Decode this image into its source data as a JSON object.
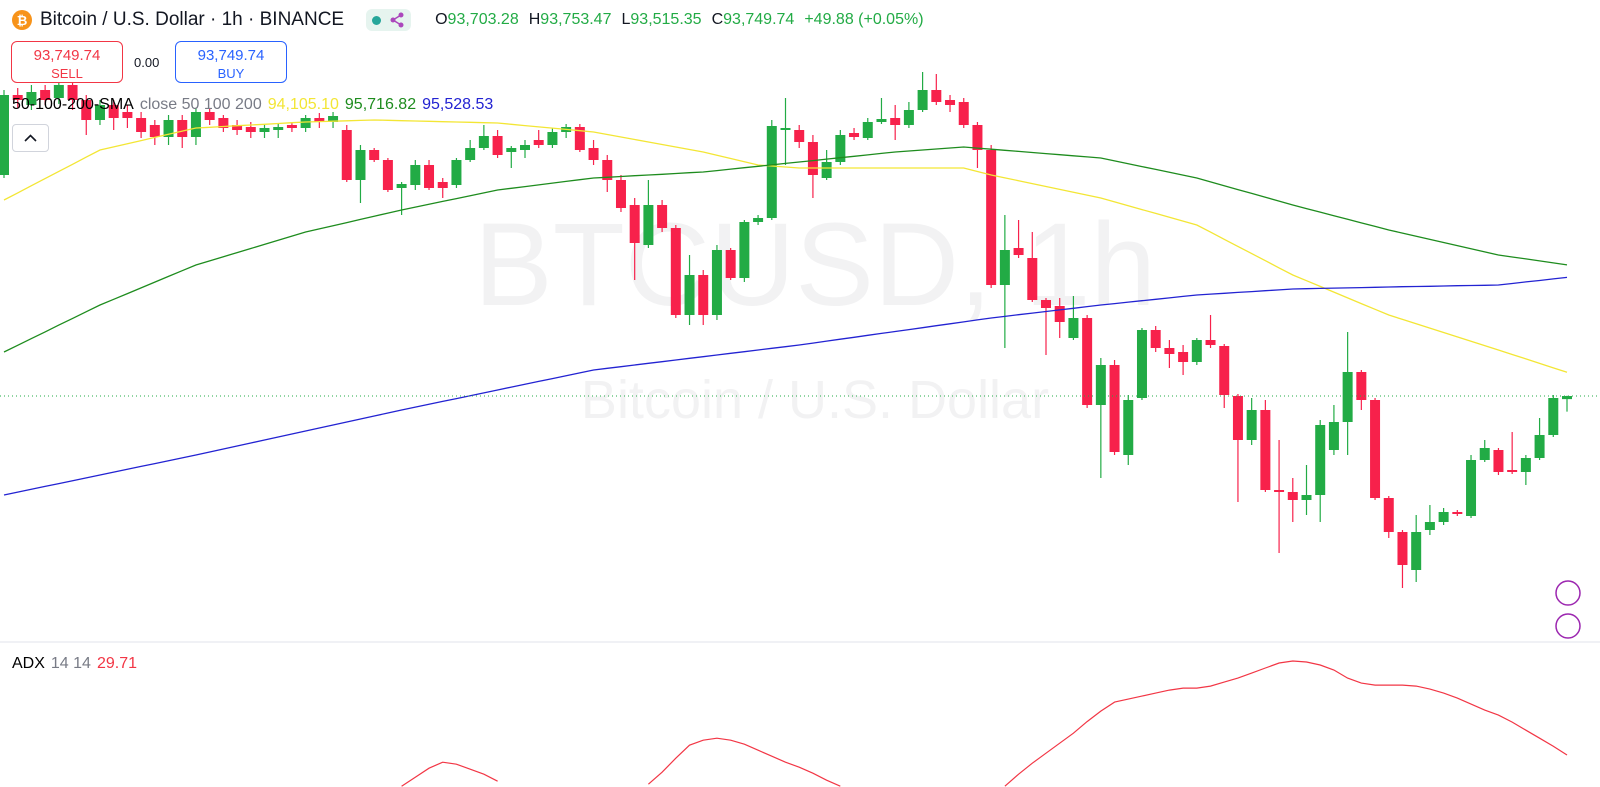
{
  "chart_data": [
    {
      "type": "candlestick",
      "title": "Bitcoin / U.S. Dollar · 1h · BINANCE",
      "quote": [
        {
          "key": "O",
          "label": "93,703.28"
        },
        {
          "key": "H",
          "label": "93,753.47"
        },
        {
          "key": "L",
          "label": "93,515.35"
        },
        {
          "key": "C",
          "label": "93,749.74"
        }
      ],
      "change": "+49.88 (+0.05%)",
      "sell": {
        "price": "93,749.74",
        "label": "SELL"
      },
      "spread": "0.00",
      "buy": {
        "price": "93,749.74",
        "label": "BUY"
      },
      "watermark": [
        "BTCUSD, 1h",
        "Bitcoin / U.S. Dollar"
      ],
      "indicator": {
        "title": "50-100-200-SMA",
        "params": "close 50 100 200"
      },
      "up_color": "#22ab45",
      "down_color": "#f7214b",
      "ylim": [
        90090,
        99690
      ],
      "categories": [
        null,
        null,
        null,
        null,
        null,
        null,
        null,
        null,
        null,
        null,
        null,
        null,
        null,
        null,
        null,
        null,
        null,
        null,
        null,
        null,
        null,
        null,
        null,
        null,
        null,
        null,
        null,
        null,
        null,
        null,
        null,
        null,
        null,
        null,
        null,
        null,
        null,
        null,
        null,
        null,
        null,
        null,
        null,
        null,
        null,
        null,
        null,
        null,
        null,
        null,
        null,
        null,
        null,
        null,
        null,
        null,
        null,
        null,
        null,
        null,
        null,
        null,
        null,
        null,
        null,
        null,
        null,
        null,
        null,
        null,
        null,
        null,
        null,
        null,
        null,
        null,
        null,
        null,
        null,
        null,
        null,
        null,
        null,
        null,
        null,
        null,
        null,
        null,
        null,
        null,
        null,
        null,
        null,
        null,
        null,
        null,
        null,
        null,
        null,
        null,
        null,
        null,
        null,
        null,
        null,
        null,
        null,
        null,
        null,
        null,
        null,
        null,
        null,
        null,
        null
      ],
      "open": [
        97065,
        98265,
        98115,
        98340,
        98220,
        98415,
        98190,
        97890,
        98115,
        98010,
        97920,
        97815,
        97635,
        97890,
        97635,
        98010,
        97920,
        97815,
        97785,
        97710,
        97740,
        97815,
        97770,
        97920,
        97860,
        97740,
        96990,
        97440,
        97290,
        96870,
        96915,
        97215,
        96960,
        96915,
        97290,
        97470,
        97650,
        97410,
        97440,
        97590,
        97515,
        97710,
        97785,
        97470,
        97290,
        96990,
        96615,
        96015,
        96615,
        96270,
        94965,
        95565,
        94965,
        95940,
        95520,
        96360,
        96420,
        97740,
        97740,
        97560,
        97020,
        97260,
        97695,
        97620,
        97860,
        97920,
        97815,
        98040,
        98340,
        98190,
        98160,
        97815,
        97440,
        95415,
        95970,
        95820,
        95190,
        95100,
        94620,
        94920,
        93615,
        94215,
        92865,
        93720,
        94740,
        94470,
        94410,
        94260,
        94590,
        94500,
        93750,
        93090,
        93540,
        92340,
        92310,
        92190,
        92265,
        92940,
        93360,
        94110,
        93690,
        92220,
        91710,
        91140,
        91740,
        91860,
        92010,
        91950,
        92790,
        92940,
        92640,
        92610,
        92820,
        93165,
        93703.28
      ],
      "high": [
        98340,
        98370,
        98415,
        98415,
        98490,
        98490,
        98265,
        98190,
        98190,
        98115,
        98010,
        97890,
        97965,
        97965,
        98070,
        98070,
        97965,
        97890,
        97860,
        97815,
        97830,
        97860,
        97965,
        97995,
        98010,
        97815,
        97515,
        97470,
        97320,
        96960,
        97290,
        97290,
        97020,
        97320,
        97590,
        97815,
        97740,
        97500,
        97590,
        97740,
        97770,
        97830,
        97830,
        97590,
        97365,
        97065,
        96720,
        96990,
        96690,
        96315,
        95865,
        95640,
        96015,
        95970,
        96390,
        96465,
        97890,
        98220,
        97815,
        97665,
        97440,
        97740,
        97770,
        97920,
        98220,
        98115,
        98160,
        98610,
        98580,
        98265,
        98220,
        97860,
        97515,
        96465,
        96390,
        96210,
        95220,
        95220,
        95250,
        94965,
        94320,
        94290,
        93765,
        94770,
        94800,
        94590,
        94515,
        94620,
        94965,
        94530,
        93780,
        93720,
        93690,
        93090,
        92520,
        92715,
        93390,
        93615,
        94710,
        94140,
        93720,
        92250,
        91740,
        91965,
        92115,
        92070,
        92040,
        92865,
        93090,
        92970,
        93210,
        92865,
        93420,
        93765,
        93753.47
      ],
      "low": [
        97020,
        98070,
        98040,
        98115,
        98130,
        98040,
        97665,
        97815,
        97740,
        97770,
        97620,
        97515,
        97515,
        97470,
        97515,
        97815,
        97710,
        97665,
        97620,
        97620,
        97620,
        97710,
        97710,
        97770,
        97770,
        96960,
        96645,
        97260,
        96810,
        96465,
        96840,
        96840,
        96720,
        96870,
        97260,
        97440,
        97320,
        97170,
        97320,
        97470,
        97470,
        97620,
        97410,
        97215,
        96810,
        96510,
        95490,
        95970,
        96210,
        94920,
        94815,
        94815,
        94890,
        95490,
        95460,
        96315,
        96390,
        97215,
        97470,
        96720,
        96990,
        97215,
        97590,
        97590,
        97830,
        97590,
        97770,
        98010,
        98115,
        98010,
        97770,
        97170,
        95370,
        94470,
        95820,
        95160,
        94365,
        94620,
        94590,
        93570,
        92520,
        92865,
        92715,
        93690,
        94410,
        94170,
        94065,
        94215,
        94470,
        93570,
        92160,
        93015,
        92310,
        91395,
        91860,
        91965,
        91860,
        92865,
        92865,
        93540,
        92190,
        91620,
        90870,
        90960,
        91665,
        91815,
        91950,
        91920,
        92760,
        92565,
        92580,
        92415,
        92790,
        93135,
        93515.35
      ],
      "close": [
        98265,
        98190,
        98310,
        98190,
        98415,
        98190,
        97890,
        98115,
        97920,
        97920,
        97710,
        97635,
        97890,
        97635,
        98010,
        97890,
        97770,
        97740,
        97710,
        97770,
        97785,
        97770,
        97920,
        97860,
        97950,
        96990,
        97440,
        97290,
        96840,
        96930,
        97215,
        96870,
        96870,
        97290,
        97470,
        97650,
        97365,
        97470,
        97515,
        97515,
        97710,
        97785,
        97440,
        97290,
        96990,
        96570,
        96045,
        96615,
        96270,
        94965,
        95565,
        94965,
        95940,
        95520,
        96360,
        96420,
        97800,
        97770,
        97560,
        97065,
        97260,
        97665,
        97635,
        97860,
        97905,
        97815,
        98040,
        98340,
        98160,
        98115,
        97815,
        97440,
        95415,
        95940,
        95865,
        95190,
        95070,
        94860,
        94920,
        93615,
        94215,
        92910,
        93690,
        94740,
        94470,
        94380,
        94260,
        94590,
        94515,
        93765,
        93090,
        93540,
        92340,
        92310,
        92190,
        92265,
        93315,
        93360,
        94110,
        93690,
        92220,
        91710,
        91215,
        91710,
        91860,
        92010,
        91980,
        92790,
        92970,
        92610,
        92610,
        92820,
        93165,
        93720,
        93749.74
      ],
      "series": [
        {
          "color": "#f3e635",
          "value_label": "94,105.10",
          "values": [
            96690,
            96797,
            96904,
            97011,
            97119,
            97226,
            97333,
            97440,
            97487,
            97534,
            97581,
            97629,
            97676,
            97723,
            97770,
            97781,
            97793,
            97804,
            97815,
            97826,
            97838,
            97849,
            97860,
            97866,
            97872,
            97878,
            97884,
            97890,
            97885,
            97880,
            97875,
            97870,
            97865,
            97860,
            97855,
            97850,
            97845,
            97826,
            97806,
            97787,
            97768,
            97749,
            97729,
            97710,
            97673,
            97635,
            97598,
            97560,
            97523,
            97485,
            97448,
            97410,
            97361,
            97313,
            97264,
            97215,
            97200,
            97185,
            97170,
            97170,
            97170,
            97170,
            97170,
            97170,
            97170,
            97170,
            97170,
            97170,
            97170,
            97170,
            97170,
            97118,
            97065,
            97022,
            96979,
            96936,
            96893,
            96849,
            96806,
            96763,
            96720,
            96662,
            96604,
            96546,
            96489,
            96431,
            96373,
            96315,
            96208,
            96101,
            95994,
            95886,
            95779,
            95672,
            95565,
            95479,
            95394,
            95308,
            95222,
            95136,
            95051,
            94965,
            94899,
            94834,
            94768,
            94703,
            94637,
            94571,
            94506,
            94440,
            94373,
            94306,
            94239,
            94172,
            94105.1
          ]
        },
        {
          "color": "#1e8c1e",
          "value_label": "95,716.82",
          "values": [
            94410,
            94511,
            94611,
            94712,
            94813,
            94914,
            95014,
            95115,
            95201,
            95286,
            95372,
            95458,
            95544,
            95629,
            95715,
            95777,
            95839,
            95901,
            95963,
            96024,
            96086,
            96148,
            96210,
            96257,
            96304,
            96351,
            96399,
            96446,
            96493,
            96540,
            96583,
            96626,
            96669,
            96711,
            96754,
            96797,
            96840,
            96866,
            96891,
            96917,
            96943,
            96969,
            96994,
            97020,
            97031,
            97043,
            97054,
            97065,
            97076,
            97088,
            97099,
            97110,
            97131,
            97153,
            97174,
            97196,
            97217,
            97239,
            97260,
            97281,
            97303,
            97324,
            97346,
            97367,
            97389,
            97410,
            97425,
            97440,
            97455,
            97470,
            97485,
            97469,
            97452,
            97436,
            97419,
            97403,
            97386,
            97370,
            97353,
            97337,
            97320,
            97277,
            97234,
            97191,
            97149,
            97106,
            97063,
            97020,
            96962,
            96904,
            96846,
            96789,
            96731,
            96673,
            96615,
            96561,
            96508,
            96454,
            96401,
            96347,
            96294,
            96240,
            96193,
            96146,
            96099,
            96053,
            96006,
            95959,
            95912,
            95865,
            95835,
            95806,
            95776,
            95746,
            95716.82
          ]
        },
        {
          "color": "#2323d2",
          "value_label": "95,528.53",
          "values": [
            92265,
            92308,
            92351,
            92394,
            92436,
            92479,
            92522,
            92565,
            92608,
            92651,
            92694,
            92736,
            92779,
            92822,
            92865,
            92910,
            92955,
            93000,
            93045,
            93090,
            93135,
            93180,
            93225,
            93270,
            93315,
            93360,
            93405,
            93450,
            93495,
            93540,
            93583,
            93626,
            93669,
            93711,
            93754,
            93797,
            93840,
            93883,
            93926,
            93969,
            94011,
            94054,
            94097,
            94140,
            94165,
            94190,
            94215,
            94240,
            94265,
            94290,
            94315,
            94340,
            94365,
            94390,
            94415,
            94440,
            94465,
            94490,
            94515,
            94544,
            94573,
            94602,
            94631,
            94660,
            94689,
            94718,
            94746,
            94775,
            94804,
            94833,
            94862,
            94891,
            94920,
            94944,
            94969,
            94993,
            95018,
            95042,
            95066,
            95091,
            95115,
            95136,
            95158,
            95179,
            95201,
            95222,
            95244,
            95265,
            95278,
            95291,
            95304,
            95316,
            95329,
            95342,
            95355,
            95359,
            95364,
            95368,
            95372,
            95376,
            95381,
            95385,
            95389,
            95393,
            95396,
            95400,
            95404,
            95408,
            95411,
            95415,
            95438,
            95461,
            95483,
            95506,
            95528.53
          ]
        }
      ]
    },
    {
      "type": "line",
      "title": "ADX",
      "params": "14 14",
      "value_label": "29.71",
      "color": "#f23645",
      "ylim": [
        24.6,
        47.6
      ],
      "values": [
        null,
        null,
        null,
        null,
        null,
        null,
        null,
        null,
        null,
        null,
        null,
        null,
        null,
        null,
        null,
        null,
        null,
        null,
        null,
        null,
        null,
        null,
        null,
        null,
        null,
        null,
        null,
        null,
        null,
        24.72,
        26.16,
        27.6,
        28.56,
        28.24,
        27.44,
        26.64,
        25.52,
        null,
        null,
        null,
        null,
        null,
        null,
        null,
        null,
        null,
        null,
        25.04,
        26.96,
        29.2,
        31.28,
        32.08,
        32.4,
        32.08,
        31.44,
        30.48,
        29.52,
        28.56,
        27.76,
        26.8,
        25.68,
        24.72,
        null,
        null,
        null,
        null,
        null,
        null,
        null,
        null,
        null,
        null,
        null,
        24.72,
        26.64,
        28.4,
        30.0,
        31.6,
        33.2,
        35.04,
        36.72,
        38.16,
        38.64,
        39.12,
        39.6,
        40.08,
        40.4,
        40.4,
        40.72,
        41.36,
        42.0,
        42.8,
        43.6,
        44.4,
        44.72,
        44.56,
        44.08,
        43.28,
        42.0,
        41.2,
        40.88,
        40.88,
        40.88,
        40.72,
        40.24,
        39.6,
        38.8,
        37.84,
        36.88,
        36.08,
        34.96,
        33.68,
        32.4,
        31.12,
        29.71
      ]
    }
  ]
}
